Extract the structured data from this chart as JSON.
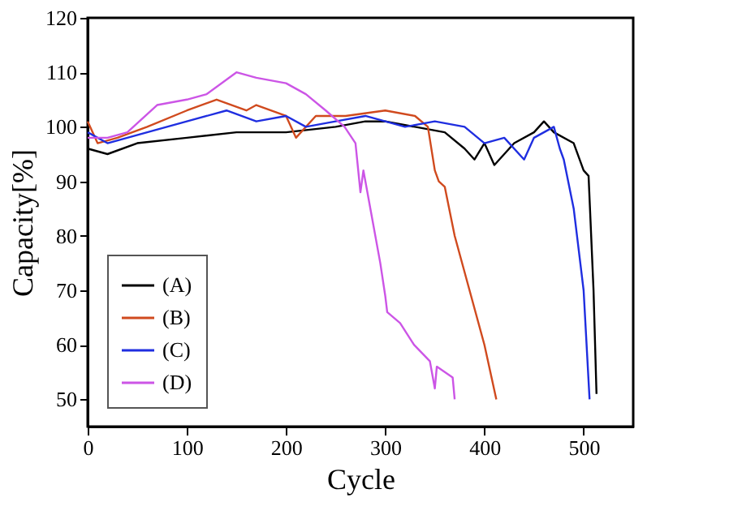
{
  "chart_data": {
    "type": "line",
    "xlabel": "Cycle",
    "ylabel": "Capacity[%]",
    "xlim": [
      0,
      550
    ],
    "ylim": [
      45,
      120
    ],
    "xticks": [
      0,
      100,
      200,
      300,
      400,
      500
    ],
    "yticks": [
      50,
      60,
      70,
      80,
      90,
      100,
      110,
      120
    ],
    "grid": false,
    "legend": "bottom left",
    "line_style": "solid",
    "marker": "none",
    "series": [
      {
        "name": "(A)",
        "color": "#000000",
        "x": [
          0,
          20,
          50,
          100,
          150,
          200,
          250,
          280,
          300,
          330,
          360,
          380,
          390,
          400,
          410,
          430,
          450,
          460,
          470,
          490,
          500,
          505,
          510,
          513
        ],
        "values": [
          96,
          95,
          97,
          98,
          99,
          99,
          100,
          101,
          101,
          100,
          99,
          96,
          94,
          97,
          93,
          97,
          99,
          101,
          99,
          97,
          92,
          91,
          70,
          51
        ]
      },
      {
        "name": "(B)",
        "color": "#d04a1e",
        "x": [
          0,
          10,
          30,
          60,
          100,
          130,
          160,
          170,
          200,
          210,
          230,
          260,
          300,
          330,
          343,
          350,
          354,
          360,
          370,
          385,
          400,
          412
        ],
        "values": [
          101,
          97,
          98,
          100,
          103,
          105,
          103,
          104,
          102,
          98,
          102,
          102,
          103,
          102,
          100,
          92,
          90,
          89,
          80,
          70,
          60,
          50
        ]
      },
      {
        "name": "(C)",
        "color": "#1f2ee0",
        "x": [
          0,
          20,
          60,
          100,
          140,
          170,
          200,
          220,
          250,
          280,
          320,
          350,
          380,
          400,
          420,
          440,
          450,
          470,
          476,
          480,
          490,
          496,
          500,
          506
        ],
        "values": [
          99,
          97,
          99,
          101,
          103,
          101,
          102,
          100,
          101,
          102,
          100,
          101,
          100,
          97,
          98,
          94,
          98,
          100,
          96,
          94,
          85,
          76,
          70,
          50
        ]
      },
      {
        "name": "(D)",
        "color": "#cc55e6",
        "x": [
          0,
          20,
          40,
          70,
          100,
          120,
          150,
          170,
          200,
          220,
          240,
          259,
          270,
          275,
          278,
          285,
          295,
          300,
          302,
          315,
          329,
          345,
          350,
          352,
          368,
          370
        ],
        "values": [
          98,
          98,
          99,
          104,
          105,
          106,
          110,
          109,
          108,
          106,
          103,
          100,
          97,
          88,
          92,
          85,
          75,
          69,
          66,
          64,
          60,
          57,
          52,
          56,
          54,
          50
        ]
      }
    ]
  }
}
